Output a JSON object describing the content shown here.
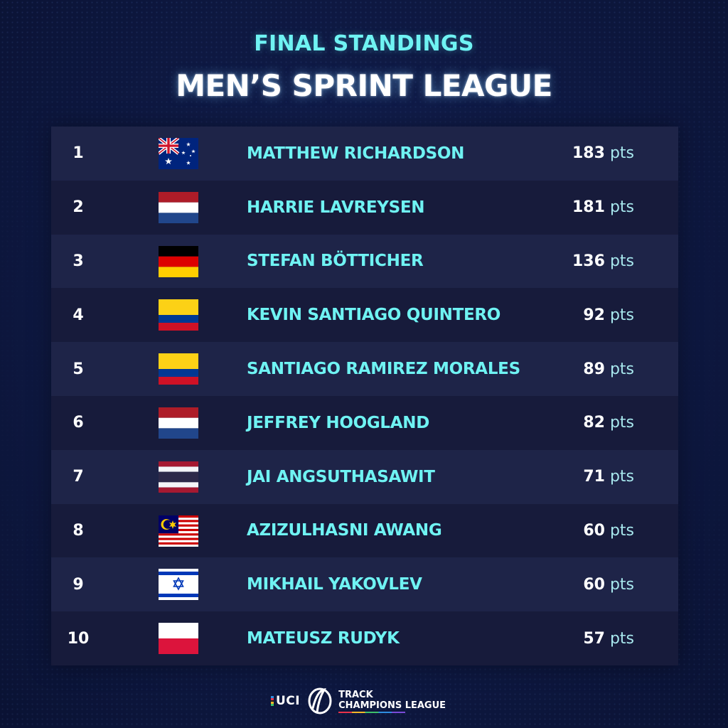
{
  "header": {
    "subtitle": "FINAL STANDINGS",
    "title": "MEN’S SPRINT LEAGUE"
  },
  "standings": [
    {
      "rank": "1",
      "flag": "australia-flag",
      "name": "MATTHEW RICHARDSON",
      "points": "183",
      "unit": "pts"
    },
    {
      "rank": "2",
      "flag": "netherlands-flag",
      "name": "HARRIE LAVREYSEN",
      "points": "181",
      "unit": "pts"
    },
    {
      "rank": "3",
      "flag": "germany-flag",
      "name": "STEFAN BÖTTICHER",
      "points": "136",
      "unit": "pts"
    },
    {
      "rank": "4",
      "flag": "colombia-flag",
      "name": "KEVIN SANTIAGO QUINTERO",
      "points": "92",
      "unit": "pts"
    },
    {
      "rank": "5",
      "flag": "colombia-flag",
      "name": "SANTIAGO RAMIREZ MORALES",
      "points": "89",
      "unit": "pts"
    },
    {
      "rank": "6",
      "flag": "netherlands-flag",
      "name": "JEFFREY HOOGLAND",
      "points": "82",
      "unit": "pts"
    },
    {
      "rank": "7",
      "flag": "thailand-flag",
      "name": "JAI ANGSUTHASAWIT",
      "points": "71",
      "unit": "pts"
    },
    {
      "rank": "8",
      "flag": "malaysia-flag",
      "name": "AZIZULHASNI AWANG",
      "points": "60",
      "unit": "pts"
    },
    {
      "rank": "9",
      "flag": "israel-flag",
      "name": "MIKHAIL YAKOVLEV",
      "points": "60",
      "unit": "pts"
    },
    {
      "rank": "10",
      "flag": "poland-flag",
      "name": "MATEUSZ RUDYK",
      "points": "57",
      "unit": "pts"
    }
  ],
  "footer": {
    "uci_label": "UCI",
    "logo_line1": "TRACK",
    "logo_line2": "CHAMPIONS LEAGUE"
  },
  "colors": {
    "accent_cyan": "#6ff3f3",
    "background": "#0f1a45",
    "row_light": "#1e2448",
    "row_dark": "#171b3b"
  }
}
